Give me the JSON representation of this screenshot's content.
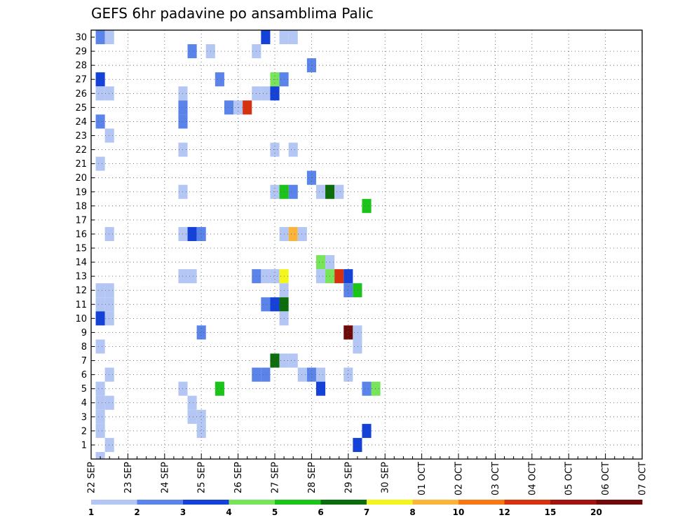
{
  "chart_data": {
    "type": "heatmap",
    "title": "GEFS 6hr padavine po ansamblima Palic",
    "xlabel": "",
    "ylabel": "",
    "x_tick_labels": [
      "22 SEP",
      "23 SEP",
      "24 SEP",
      "25 SEP",
      "26 SEP",
      "27 SEP",
      "28 SEP",
      "29 SEP",
      "30 SEP",
      "01 OCT",
      "02 OCT",
      "03 OCT",
      "04 OCT",
      "05 OCT",
      "06 OCT",
      "07 OCT"
    ],
    "y_tick_labels": [
      "1",
      "2",
      "3",
      "4",
      "5",
      "6",
      "7",
      "8",
      "9",
      "10",
      "11",
      "12",
      "13",
      "14",
      "15",
      "16",
      "17",
      "18",
      "19",
      "20",
      "21",
      "22",
      "23",
      "24",
      "25",
      "26",
      "27",
      "28",
      "29",
      "30"
    ],
    "xlim_steps": [
      0,
      60
    ],
    "ylim": [
      0,
      30
    ],
    "grid": true,
    "colorbar": {
      "boundaries": [
        "1",
        "2",
        "3",
        "4",
        "5",
        "6",
        "7",
        "8",
        "10",
        "12",
        "15",
        "20"
      ],
      "colors": [
        "#b4c6f4",
        "#5b84ea",
        "#1442d8",
        "#78e45a",
        "#1bc31b",
        "#0b6d0b",
        "#f5f51e",
        "#fab43c",
        "#f57814",
        "#d7320f",
        "#a0140f",
        "#6e0a0a"
      ]
    },
    "cells": [
      {
        "member": 30,
        "step": 1,
        "value": 2
      },
      {
        "member": 30,
        "step": 2,
        "value": 1
      },
      {
        "member": 30,
        "step": 19,
        "value": 3
      },
      {
        "member": 30,
        "step": 21,
        "value": 1
      },
      {
        "member": 30,
        "step": 22,
        "value": 1
      },
      {
        "member": 29,
        "step": 11,
        "value": 2
      },
      {
        "member": 29,
        "step": 13,
        "value": 1
      },
      {
        "member": 29,
        "step": 18,
        "value": 1
      },
      {
        "member": 28,
        "step": 24,
        "value": 2
      },
      {
        "member": 27,
        "step": 1,
        "value": 3
      },
      {
        "member": 27,
        "step": 14,
        "value": 2
      },
      {
        "member": 27,
        "step": 20,
        "value": 4
      },
      {
        "member": 27,
        "step": 21,
        "value": 2
      },
      {
        "member": 26,
        "step": 1,
        "value": 1
      },
      {
        "member": 26,
        "step": 2,
        "value": 1
      },
      {
        "member": 26,
        "step": 10,
        "value": 1
      },
      {
        "member": 26,
        "step": 18,
        "value": 1
      },
      {
        "member": 26,
        "step": 19,
        "value": 1
      },
      {
        "member": 26,
        "step": 20,
        "value": 3
      },
      {
        "member": 25,
        "step": 10,
        "value": 2
      },
      {
        "member": 25,
        "step": 15,
        "value": 2
      },
      {
        "member": 25,
        "step": 16,
        "value": 1
      },
      {
        "member": 25,
        "step": 17,
        "value": 10
      },
      {
        "member": 24,
        "step": 1,
        "value": 2
      },
      {
        "member": 24,
        "step": 10,
        "value": 2
      },
      {
        "member": 23,
        "step": 2,
        "value": 1
      },
      {
        "member": 22,
        "step": 10,
        "value": 1
      },
      {
        "member": 22,
        "step": 20,
        "value": 1
      },
      {
        "member": 22,
        "step": 22,
        "value": 1
      },
      {
        "member": 21,
        "step": 1,
        "value": 1
      },
      {
        "member": 20,
        "step": 24,
        "value": 2
      },
      {
        "member": 19,
        "step": 10,
        "value": 1
      },
      {
        "member": 19,
        "step": 20,
        "value": 1
      },
      {
        "member": 19,
        "step": 21,
        "value": 5
      },
      {
        "member": 19,
        "step": 22,
        "value": 2
      },
      {
        "member": 19,
        "step": 25,
        "value": 1
      },
      {
        "member": 19,
        "step": 26,
        "value": 6
      },
      {
        "member": 19,
        "step": 27,
        "value": 1
      },
      {
        "member": 18,
        "step": 30,
        "value": 5
      },
      {
        "member": 16,
        "step": 2,
        "value": 1
      },
      {
        "member": 16,
        "step": 10,
        "value": 1
      },
      {
        "member": 16,
        "step": 11,
        "value": 3
      },
      {
        "member": 16,
        "step": 12,
        "value": 2
      },
      {
        "member": 16,
        "step": 21,
        "value": 1
      },
      {
        "member": 16,
        "step": 22,
        "value": 8
      },
      {
        "member": 16,
        "step": 23,
        "value": 1
      },
      {
        "member": 14,
        "step": 25,
        "value": 4
      },
      {
        "member": 14,
        "step": 26,
        "value": 1
      },
      {
        "member": 13,
        "step": 10,
        "value": 1
      },
      {
        "member": 13,
        "step": 11,
        "value": 1
      },
      {
        "member": 13,
        "step": 18,
        "value": 2
      },
      {
        "member": 13,
        "step": 19,
        "value": 1
      },
      {
        "member": 13,
        "step": 20,
        "value": 1
      },
      {
        "member": 13,
        "step": 21,
        "value": 7
      },
      {
        "member": 13,
        "step": 25,
        "value": 1
      },
      {
        "member": 13,
        "step": 26,
        "value": 4
      },
      {
        "member": 13,
        "step": 27,
        "value": 10
      },
      {
        "member": 13,
        "step": 28,
        "value": 3
      },
      {
        "member": 12,
        "step": 1,
        "value": 1
      },
      {
        "member": 12,
        "step": 2,
        "value": 1
      },
      {
        "member": 12,
        "step": 21,
        "value": 1
      },
      {
        "member": 12,
        "step": 28,
        "value": 2
      },
      {
        "member": 12,
        "step": 29,
        "value": 5
      },
      {
        "member": 11,
        "step": 1,
        "value": 1
      },
      {
        "member": 11,
        "step": 2,
        "value": 1
      },
      {
        "member": 11,
        "step": 19,
        "value": 2
      },
      {
        "member": 11,
        "step": 20,
        "value": 3
      },
      {
        "member": 11,
        "step": 21,
        "value": 6
      },
      {
        "member": 10,
        "step": 1,
        "value": 3
      },
      {
        "member": 10,
        "step": 2,
        "value": 1
      },
      {
        "member": 10,
        "step": 21,
        "value": 1
      },
      {
        "member": 9,
        "step": 12,
        "value": 2
      },
      {
        "member": 9,
        "step": 28,
        "value": 12
      },
      {
        "member": 9,
        "step": 29,
        "value": 1
      },
      {
        "member": 8,
        "step": 1,
        "value": 1
      },
      {
        "member": 8,
        "step": 29,
        "value": 1
      },
      {
        "member": 7,
        "step": 20,
        "value": 6
      },
      {
        "member": 7,
        "step": 21,
        "value": 1
      },
      {
        "member": 7,
        "step": 22,
        "value": 1
      },
      {
        "member": 6,
        "step": 2,
        "value": 1
      },
      {
        "member": 6,
        "step": 18,
        "value": 2
      },
      {
        "member": 6,
        "step": 19,
        "value": 2
      },
      {
        "member": 6,
        "step": 23,
        "value": 1
      },
      {
        "member": 6,
        "step": 24,
        "value": 2
      },
      {
        "member": 6,
        "step": 25,
        "value": 1
      },
      {
        "member": 6,
        "step": 28,
        "value": 1
      },
      {
        "member": 5,
        "step": 1,
        "value": 1
      },
      {
        "member": 5,
        "step": 10,
        "value": 1
      },
      {
        "member": 5,
        "step": 14,
        "value": 5
      },
      {
        "member": 5,
        "step": 25,
        "value": 3
      },
      {
        "member": 5,
        "step": 30,
        "value": 2
      },
      {
        "member": 5,
        "step": 31,
        "value": 4
      },
      {
        "member": 4,
        "step": 1,
        "value": 1
      },
      {
        "member": 4,
        "step": 2,
        "value": 1
      },
      {
        "member": 4,
        "step": 11,
        "value": 1
      },
      {
        "member": 3,
        "step": 1,
        "value": 1
      },
      {
        "member": 3,
        "step": 11,
        "value": 1
      },
      {
        "member": 3,
        "step": 12,
        "value": 1
      },
      {
        "member": 2,
        "step": 1,
        "value": 1
      },
      {
        "member": 2,
        "step": 12,
        "value": 1
      },
      {
        "member": 2,
        "step": 30,
        "value": 3
      },
      {
        "member": 1,
        "step": 2,
        "value": 1
      },
      {
        "member": 1,
        "step": 29,
        "value": 3
      },
      {
        "member": 0,
        "step": 1,
        "value": 1
      }
    ]
  }
}
